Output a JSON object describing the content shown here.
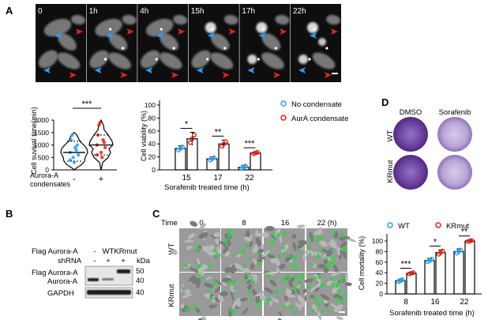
{
  "panelA": {
    "letter": "A",
    "frames": [
      {
        "label": "0"
      },
      {
        "label": "1h"
      },
      {
        "label": "4h"
      },
      {
        "label": "15h"
      },
      {
        "label": "17h"
      },
      {
        "label": "22h"
      }
    ],
    "colors": {
      "blue_arrow": "#2a9df4",
      "red_arrow": "#e2231a",
      "bg": "#0e0e0e"
    }
  },
  "survival": {
    "ylabel": "Cell suvival time(min)",
    "yticks": [
      "0",
      "500",
      "1000",
      "1500",
      "2000"
    ],
    "ylim": [
      0,
      2000
    ],
    "categories": [
      "-",
      "+"
    ],
    "xtitle1": "Aurora-A",
    "xtitle2": "condensates",
    "sig": "***",
    "medians": [
      700,
      1000
    ],
    "quartiles": [
      [
        350,
        1150
      ],
      [
        600,
        1400
      ]
    ],
    "colors": [
      "#2a9df4",
      "#e2231a"
    ]
  },
  "viability": {
    "ylabel": "Cell viability (%)",
    "yticks": [
      "0",
      "20",
      "40",
      "60",
      "80",
      "100"
    ],
    "ylim": [
      0,
      100
    ],
    "xlabel": "Sorafenib treated time (h)",
    "categories": [
      "15",
      "17",
      "22"
    ],
    "sig": [
      "*",
      "**",
      "***"
    ],
    "legend": [
      "No condensate",
      "AurA condensate"
    ]
  },
  "panelD": {
    "letter": "D",
    "cols": [
      "DMSO",
      "Sorafenib"
    ],
    "rows": [
      "WT",
      "KRmut"
    ],
    "color": "#6b3fa0"
  },
  "panelB": {
    "letter": "B",
    "rowlabels": [
      "Flag Aurora-A",
      "shRNA"
    ],
    "lane_labels": [
      "-",
      "WT",
      "KRmut"
    ],
    "shrna_signs": [
      "-",
      "+",
      "+"
    ],
    "kda": "kDa",
    "mw": [
      "50",
      "40",
      "40"
    ],
    "band_labels": [
      "Flag Aurora-A",
      "Aurora-A",
      "GAPDH"
    ]
  },
  "panelC": {
    "letter": "C",
    "time_label": "Time",
    "times": [
      "0",
      "8",
      "16",
      "22 (h)"
    ],
    "rows": [
      "WT",
      "KRmut"
    ],
    "colors": {
      "cells": "#8a8a8a",
      "green": "#35d14a"
    }
  },
  "mortality": {
    "ylabel": "Cell mortality (%)",
    "yticks": [
      "0",
      "20",
      "40",
      "60",
      "80",
      "100"
    ],
    "ylim": [
      0,
      100
    ],
    "xlabel": "Sorafenib treated time (h)",
    "categories": [
      "8",
      "16",
      "22"
    ],
    "sig": [
      "***",
      "*",
      "**"
    ],
    "legend": [
      "WT",
      "KRmut"
    ]
  },
  "chart_data": [
    {
      "type": "violin",
      "categories": [
        "-",
        "+"
      ],
      "ylabel": "Cell suvival time(min)",
      "ylim": [
        0,
        2000
      ],
      "series": [
        {
          "name": "-",
          "values": [
            700,
            1200,
            1400,
            500,
            300,
            900,
            800,
            1000,
            600,
            400
          ]
        },
        {
          "name": "+",
          "values": [
            1000,
            1400,
            1800,
            1900,
            700,
            500,
            1200,
            1100,
            900,
            600
          ]
        }
      ]
    },
    {
      "type": "bar",
      "categories": [
        "15",
        "17",
        "22"
      ],
      "ylabel": "Cell viability (%)",
      "xlabel": "Sorafenib treated time (h)",
      "ylim": [
        0,
        100
      ],
      "series": [
        {
          "name": "No condensate",
          "values": [
            33,
            17,
            4
          ],
          "errors": [
            4,
            3,
            3
          ]
        },
        {
          "name": "AurA condensate",
          "values": [
            48,
            40,
            26
          ],
          "errors": [
            10,
            6,
            2
          ]
        }
      ]
    },
    {
      "type": "bar",
      "categories": [
        "8",
        "16",
        "22"
      ],
      "ylabel": "Cell mortality (%)",
      "xlabel": "Sorafenib treated time (h)",
      "ylim": [
        0,
        100
      ],
      "series": [
        {
          "name": "WT",
          "values": [
            25,
            63,
            80
          ],
          "errors": [
            3,
            4,
            5
          ]
        },
        {
          "name": "KRmut",
          "values": [
            39,
            78,
            100
          ],
          "errors": [
            2,
            5,
            2
          ]
        }
      ]
    }
  ]
}
